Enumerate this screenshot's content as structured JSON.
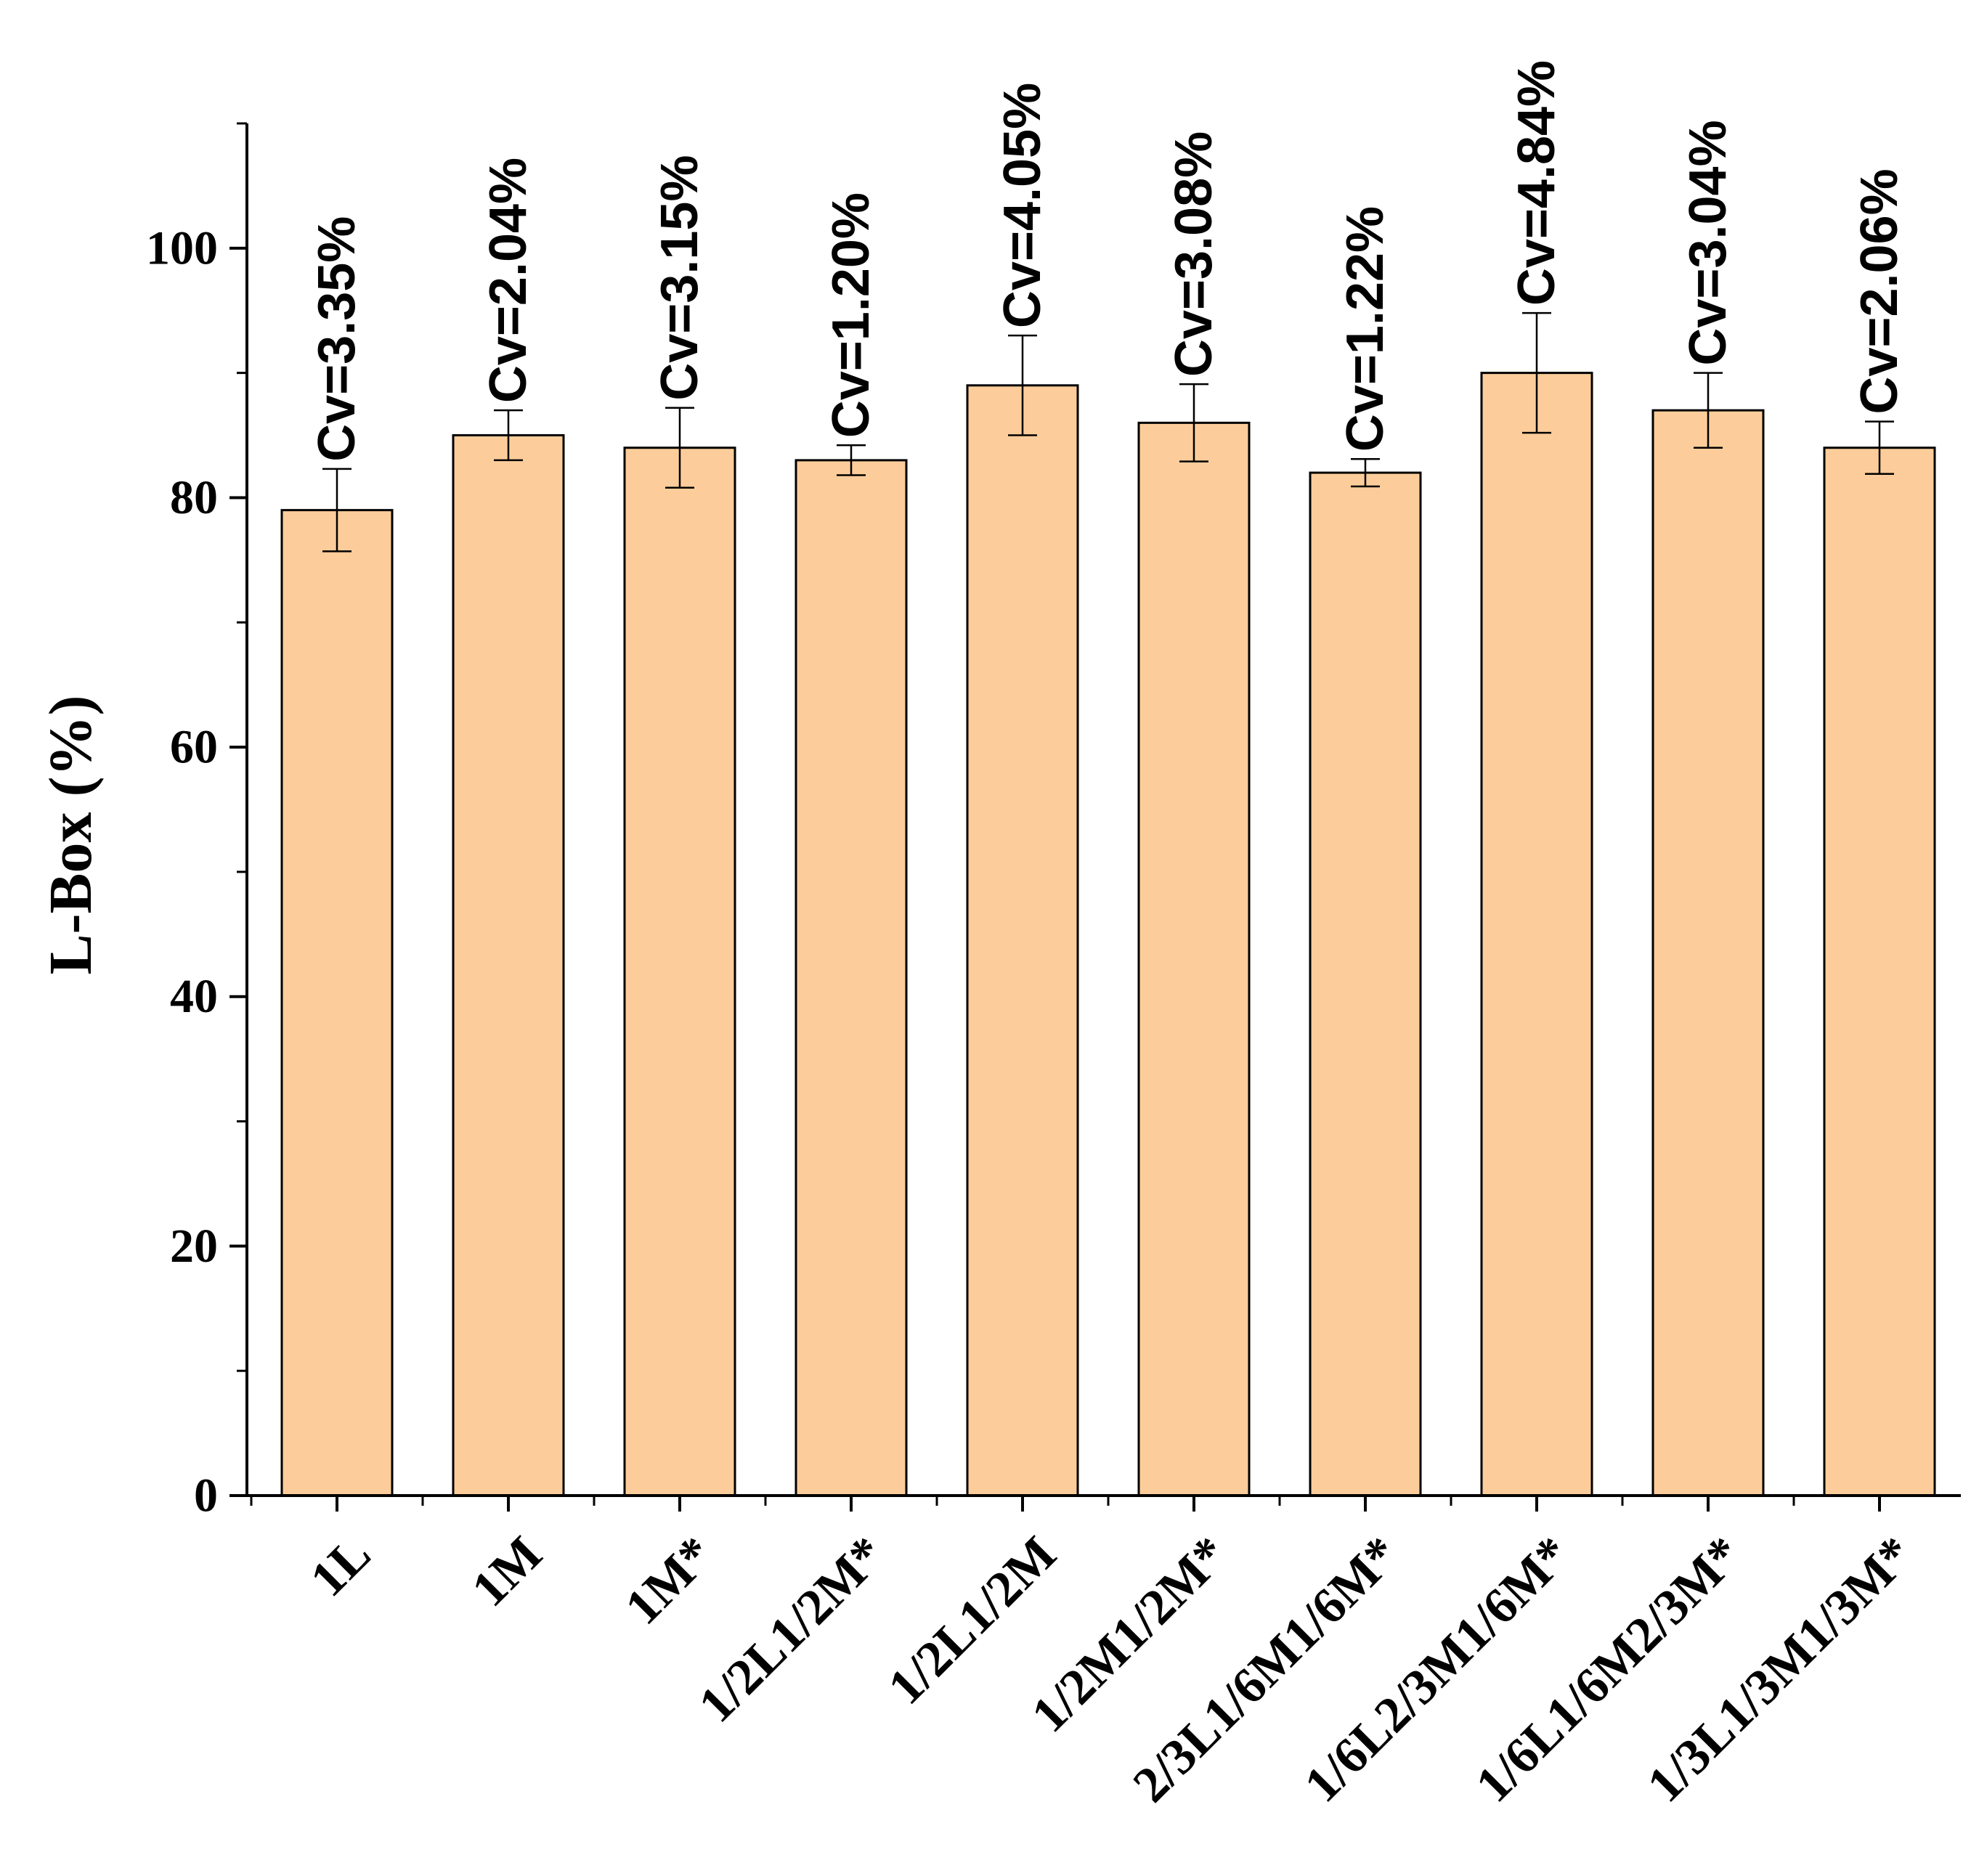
{
  "chart_data": {
    "type": "bar",
    "title": "",
    "xlabel": "",
    "ylabel": "L-Box (%)",
    "ylim": [
      0,
      110
    ],
    "yticks": [
      0,
      20,
      40,
      60,
      80,
      100
    ],
    "ytick_labels": [
      "0",
      "20",
      "40",
      "60",
      "80",
      "100"
    ],
    "grid": false,
    "legend": "none",
    "categories": [
      "1L",
      "1M",
      "1M*",
      "1/2L1/2M*",
      "1/2L1/2M",
      "1/2M1/2M*",
      "2/3L1/6M1/6M*",
      "1/6L2/3M1/6M*",
      "1/6L1/6M2/3M*",
      "1/3L1/3M1/3M*"
    ],
    "values": [
      79,
      85,
      84,
      83,
      89,
      86,
      82,
      90,
      87,
      84
    ],
    "errors": [
      3.3,
      2.0,
      3.2,
      1.2,
      4.0,
      3.1,
      1.1,
      4.8,
      3.0,
      2.1
    ],
    "annotations": [
      "Cv=3.35%",
      "Cv=2.04%",
      "Cv=3.15%",
      "Cv=1.20%",
      "Cv=4.05%",
      "Cv=3.08%",
      "Cv=1.22%",
      "Cv=4.84%",
      "Cv=3.04%",
      "Cv=2.06%"
    ],
    "colors": {
      "bar_fill": "#fccd9a",
      "bar_stroke": "#000000"
    }
  }
}
